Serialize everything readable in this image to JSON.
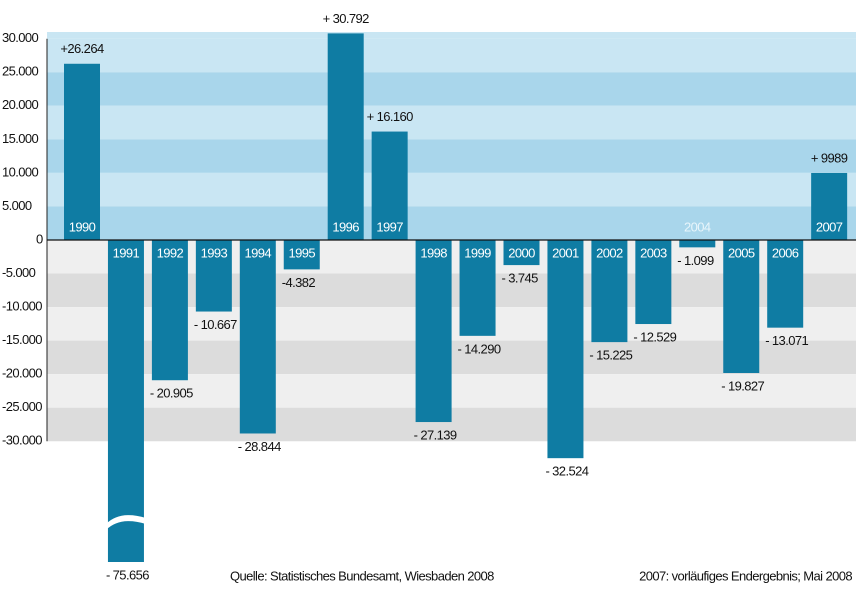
{
  "chart_data": {
    "type": "bar",
    "categories": [
      "1990",
      "1991",
      "1992",
      "1993",
      "1994",
      "1995",
      "1996",
      "1997",
      "1998",
      "1999",
      "2000",
      "2001",
      "2002",
      "2003",
      "2004",
      "2005",
      "2006",
      "2007"
    ],
    "values": [
      26264,
      -75656,
      -20905,
      -10667,
      -28844,
      -4382,
      30792,
      16160,
      -27139,
      -14290,
      -3745,
      -32524,
      -15225,
      -12529,
      -1099,
      -19827,
      -13071,
      9989
    ],
    "value_labels": [
      "+26.264",
      "- 75.656",
      "- 20.905",
      "- 10.667",
      "- 28.844",
      "-4.382",
      "+ 30.792",
      "+ 16.160",
      "- 27.139",
      "- 14.290",
      "- 3.745",
      "- 32.524",
      "- 15.225",
      "- 12.529",
      "- 1.099",
      "- 19.827",
      "- 13.071",
      "+ 9989"
    ],
    "color": "#0f7ca3",
    "ylim": [
      -48000,
      31000
    ],
    "yticks": [
      {
        "value": 30000,
        "label": "30.000"
      },
      {
        "value": 25000,
        "label": "25.000"
      },
      {
        "value": 20000,
        "label": "20.000"
      },
      {
        "value": 15000,
        "label": "15.000"
      },
      {
        "value": 10000,
        "label": "10.000"
      },
      {
        "value": 5000,
        "label": "5.000"
      },
      0,
      {
        "value": -5000,
        "label": "-5.000"
      },
      {
        "value": -10000,
        "label": "-10.000"
      },
      {
        "value": -15000,
        "label": "-15.000"
      },
      {
        "value": -20000,
        "label": "-20.000"
      },
      {
        "value": -25000,
        "label": "-25.000"
      },
      {
        "value": -30000,
        "label": "-30.000"
      }
    ],
    "grid": true,
    "source": "Quelle: Statistisches Bundesamt, Wiesbaden  2008",
    "note": "2007: vorläufiges Endergebnis; Mai 2008"
  }
}
